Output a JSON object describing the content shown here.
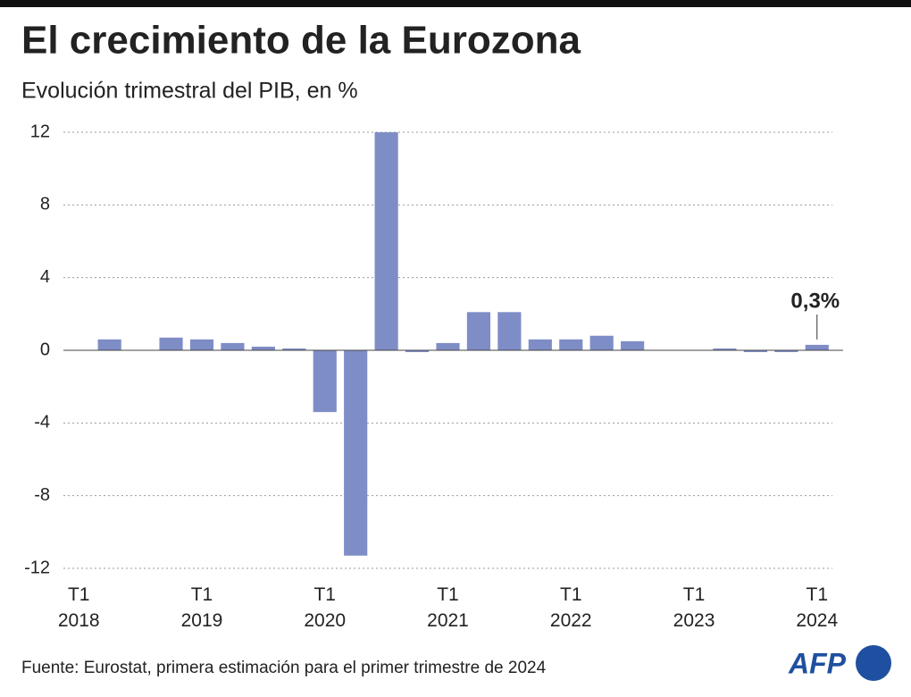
{
  "chart_data": {
    "type": "bar",
    "title": "El crecimiento de la Eurozona",
    "subtitle": "Evolución trimestral del PIB, en %",
    "source": "Fuente: Eurostat, primera estimación para el primer trimestre de 2024",
    "logo": "AFP",
    "categories": [
      "T1 2018",
      null,
      null,
      null,
      "T1 2019",
      null,
      null,
      null,
      "T1 2020",
      null,
      null,
      null,
      "T1 2021",
      null,
      null,
      null,
      "T1 2022",
      null,
      null,
      null,
      "T1 2023",
      null,
      null,
      null,
      "T1 2024"
    ],
    "values": [
      0.0,
      0.6,
      0.0,
      0.7,
      0.6,
      0.4,
      0.2,
      0.1,
      -3.4,
      -11.3,
      12.0,
      -0.1,
      0.4,
      2.1,
      2.1,
      0.6,
      0.6,
      0.8,
      0.5,
      0.0,
      0.0,
      0.1,
      -0.1,
      -0.1,
      0.3
    ],
    "value_labels": [
      null,
      null,
      null,
      null,
      null,
      null,
      null,
      null,
      null,
      null,
      null,
      null,
      null,
      null,
      null,
      null,
      null,
      null,
      null,
      null,
      null,
      null,
      null,
      null,
      "0,3%"
    ],
    "color": "#7f8dc7",
    "ylim": [
      -12,
      12
    ],
    "yticks": [
      12,
      8,
      4,
      0,
      -4,
      -8,
      -12
    ],
    "grid": true
  }
}
